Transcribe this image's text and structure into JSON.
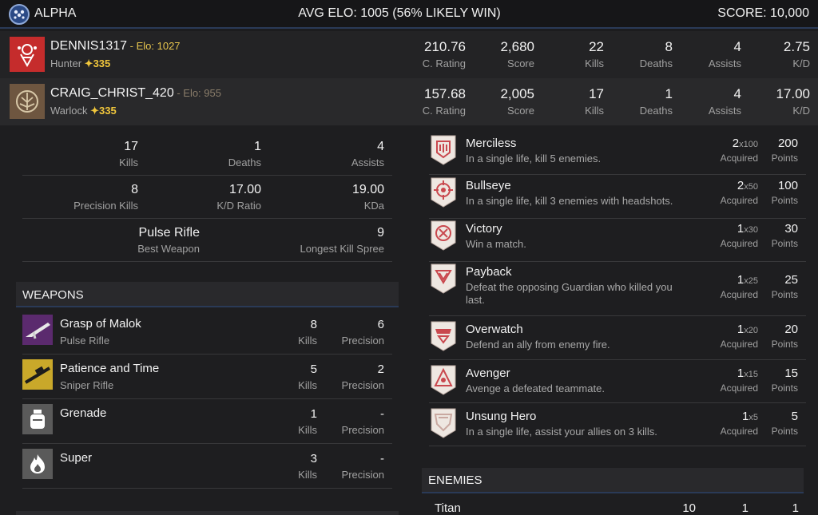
{
  "header": {
    "team_name": "ALPHA",
    "avg_elo": "AVG ELO: 1005 (56% LIKELY WIN)",
    "score": "SCORE: 10,000",
    "team_icon": "team-emblem-icon"
  },
  "players": [
    {
      "name": "DENNIS1317",
      "elo": " - Elo: 1027",
      "class": "Hunter",
      "level": "335",
      "emblem_color": "#c52c2c",
      "stats": [
        {
          "value": "210.76",
          "label": "C. Rating"
        },
        {
          "value": "2,680",
          "label": "Score"
        },
        {
          "value": "22",
          "label": "Kills"
        },
        {
          "value": "8",
          "label": "Deaths"
        },
        {
          "value": "4",
          "label": "Assists"
        },
        {
          "value": "2.75",
          "label": "K/D"
        }
      ]
    },
    {
      "name": "CRAIG_CHRIST_420",
      "elo": " - Elo: 955",
      "class": "Warlock",
      "level": "335",
      "emblem_color": "#6e5640",
      "stats": [
        {
          "value": "157.68",
          "label": "C. Rating"
        },
        {
          "value": "2,005",
          "label": "Score"
        },
        {
          "value": "17",
          "label": "Kills"
        },
        {
          "value": "1",
          "label": "Deaths"
        },
        {
          "value": "4",
          "label": "Assists"
        },
        {
          "value": "17.00",
          "label": "K/D"
        }
      ]
    }
  ],
  "summary": {
    "kills": {
      "value": "17",
      "label": "Kills"
    },
    "deaths": {
      "value": "1",
      "label": "Deaths"
    },
    "assists": {
      "value": "4",
      "label": "Assists"
    },
    "precision_kills": {
      "value": "8",
      "label": "Precision Kills"
    },
    "kd_ratio": {
      "value": "17.00",
      "label": "K/D Ratio"
    },
    "kda": {
      "value": "19.00",
      "label": "KDa"
    },
    "best_weapon": {
      "value": "Pulse Rifle",
      "label": "Best Weapon"
    },
    "longest_spree": {
      "value": "9",
      "label": "Longest Kill Spree"
    }
  },
  "weapons_title": "WEAPONS",
  "weapons": [
    {
      "name": "Grasp of Malok",
      "type": "Pulse Rifle",
      "kills": "8",
      "kills_label": "Kills",
      "precision": "6",
      "precision_label": "Precision",
      "icon": "pulse-rifle-icon",
      "color": "#5b2a6e"
    },
    {
      "name": "Patience and Time",
      "type": "Sniper Rifle",
      "kills": "5",
      "kills_label": "Kills",
      "precision": "2",
      "precision_label": "Precision",
      "icon": "sniper-rifle-icon",
      "color": "#c9a82a"
    },
    {
      "name": "Grenade",
      "type": "",
      "kills": "1",
      "kills_label": "Kills",
      "precision": "-",
      "precision_label": "Precision",
      "icon": "grenade-icon",
      "color": "#5a5a5a"
    },
    {
      "name": "Super",
      "type": "",
      "kills": "3",
      "kills_label": "Kills",
      "precision": "-",
      "precision_label": "Precision",
      "icon": "super-flame-icon",
      "color": "#5a5a5a"
    }
  ],
  "medals": [
    {
      "name": "Merciless",
      "desc": "In a single life, kill 5 enemies.",
      "count": "2",
      "mult": "x100",
      "acquired": "Acquired",
      "points": "200",
      "points_label": "Points",
      "icon": "merciless-medal-icon"
    },
    {
      "name": "Bullseye",
      "desc": "In a single life, kill 3 enemies with headshots.",
      "count": "2",
      "mult": "x50",
      "acquired": "Acquired",
      "points": "100",
      "points_label": "Points",
      "icon": "bullseye-medal-icon"
    },
    {
      "name": "Victory",
      "desc": "Win a match.",
      "count": "1",
      "mult": "x30",
      "acquired": "Acquired",
      "points": "30",
      "points_label": "Points",
      "icon": "victory-medal-icon"
    },
    {
      "name": "Payback",
      "desc": "Defeat the opposing Guardian who killed you last.",
      "count": "1",
      "mult": "x25",
      "acquired": "Acquired",
      "points": "25",
      "points_label": "Points",
      "icon": "payback-medal-icon"
    },
    {
      "name": "Overwatch",
      "desc": "Defend an ally from enemy fire.",
      "count": "1",
      "mult": "x20",
      "acquired": "Acquired",
      "points": "20",
      "points_label": "Points",
      "icon": "overwatch-medal-icon"
    },
    {
      "name": "Avenger",
      "desc": "Avenge a defeated teammate.",
      "count": "1",
      "mult": "x15",
      "acquired": "Acquired",
      "points": "15",
      "points_label": "Points",
      "icon": "avenger-medal-icon"
    },
    {
      "name": "Unsung Hero",
      "desc": "In a single life, assist your allies on 3 kills.",
      "count": "1",
      "mult": "x5",
      "acquired": "Acquired",
      "points": "5",
      "points_label": "Points",
      "icon": "unsung-hero-medal-icon"
    }
  ],
  "enemies_title": "ENEMIES",
  "enemies": [
    {
      "name": "Titan",
      "v1": "10",
      "v2": "1",
      "v3": "1"
    }
  ]
}
